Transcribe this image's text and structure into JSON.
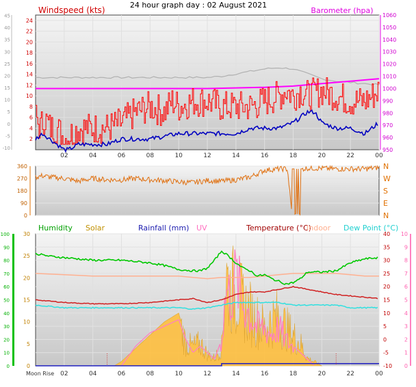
{
  "header": {
    "title": "24 hour graph day : 02 August 2021"
  },
  "colors": {
    "windspeed": "#ff0000",
    "wind_avg": "#0000c0",
    "barometer": "#ff00ff",
    "baro_grey": "#b0b0b0",
    "wind_dir": "#e07010",
    "humidity": "#00c800",
    "solar": "#ffc040",
    "rainfall": "#2020c0",
    "uv": "#ff80c0",
    "temperature": "#d02020",
    "indoor": "#ffb090",
    "dew_point": "#30e0e0",
    "day_axis_green": "#00c000",
    "solar_axis": "#c08000"
  },
  "chart_data": [
    {
      "type": "line",
      "panel": "wind",
      "left_label": "Windspeed (kts)",
      "right_label": "Barometer (hpa)",
      "x_ticks": [
        "02",
        "04",
        "06",
        "08",
        "10",
        "12",
        "14",
        "16",
        "18",
        "20",
        "22",
        "00"
      ],
      "left_ticks": [
        "-10",
        "-5",
        "0",
        "5",
        "10",
        "15",
        "20",
        "25",
        "30",
        "35",
        "40",
        "45"
      ],
      "red_ticks": [
        "2",
        "4",
        "6",
        "8",
        "10",
        "12",
        "14",
        "16",
        "18",
        "20",
        "22",
        "24"
      ],
      "right_ticks": [
        "950",
        "960",
        "970",
        "980",
        "990",
        "1000",
        "1010",
        "1020",
        "1030",
        "1040",
        "1050",
        "1060"
      ],
      "xlim": [
        0,
        24
      ],
      "red_lim": [
        0,
        25
      ],
      "baro_lim": [
        950,
        1060
      ],
      "series": [
        {
          "name": "Windspeed (kts)",
          "gust_x": [
            0,
            0.3,
            0.6,
            1,
            1.5,
            2,
            2.5,
            3,
            4,
            5,
            6,
            7,
            8,
            9,
            9.5,
            10,
            11,
            12,
            13,
            14,
            15,
            16,
            17,
            17.5,
            18,
            18.5,
            19,
            20,
            21,
            22,
            23,
            23.5,
            24
          ],
          "gust": [
            6,
            4,
            6,
            4,
            4,
            2,
            3,
            4,
            4,
            4,
            5,
            7,
            8,
            7,
            9,
            8,
            9,
            9,
            8,
            8,
            8,
            9,
            10,
            11,
            10,
            11,
            10,
            11,
            10,
            9,
            9,
            10,
            11
          ],
          "avg_x": [
            0,
            0.5,
            1,
            1.5,
            2,
            2.3,
            3,
            4,
            5,
            6,
            7,
            8,
            9,
            10,
            11,
            12,
            13,
            14,
            15,
            16,
            17,
            17.5,
            18,
            18.5,
            19,
            19.5,
            20,
            21,
            22,
            23,
            24
          ],
          "avg": [
            2,
            3,
            2,
            1,
            0,
            0,
            1,
            1,
            1,
            2,
            2,
            2,
            2.5,
            3,
            3,
            3,
            3,
            3,
            4,
            4,
            4,
            4.5,
            5,
            6,
            7,
            7,
            5,
            4,
            4,
            3,
            5
          ]
        },
        {
          "name": "Barometer (hpa)",
          "x": [
            0,
            4,
            8,
            12,
            16,
            18,
            20,
            22,
            24
          ],
          "values": [
            1000,
            1000,
            1000,
            1000,
            1001,
            1002,
            1004,
            1006,
            1008
          ]
        },
        {
          "name": "grey",
          "x": [
            0,
            2,
            4,
            6,
            8,
            10,
            12,
            13,
            14,
            15,
            16,
            17,
            18,
            19,
            20,
            21,
            22,
            23,
            24
          ],
          "values": [
            1009,
            1009,
            1009,
            1009,
            1009,
            1009,
            1009,
            1010,
            1012,
            1014,
            1016,
            1017,
            1016,
            1012,
            1008,
            1006,
            1005,
            1004,
            1003
          ]
        }
      ]
    },
    {
      "type": "scatter",
      "panel": "wind_direction",
      "left_ticks": [
        "0",
        "90",
        "180",
        "270",
        "360"
      ],
      "right_ticks": [
        "N",
        "E",
        "S",
        "W",
        "N"
      ],
      "xlim": [
        0,
        24
      ],
      "ylim": [
        0,
        360
      ],
      "series": [
        {
          "name": "wind direction",
          "x": [
            0,
            0.5,
            1,
            2,
            3,
            4,
            5,
            6,
            7,
            8,
            9,
            10,
            11,
            12,
            13,
            14,
            15,
            16,
            17,
            17.6,
            17.9,
            18.2,
            18.5,
            18.6,
            19,
            20,
            21,
            22,
            23,
            24
          ],
          "values": [
            280,
            290,
            280,
            270,
            250,
            270,
            260,
            260,
            270,
            260,
            255,
            245,
            240,
            255,
            250,
            260,
            280,
            330,
            340,
            340,
            20,
            10,
            10,
            340,
            345,
            345,
            340,
            340,
            340,
            350
          ]
        }
      ]
    },
    {
      "type": "line",
      "panel": "thermo",
      "legend": [
        "Humidity",
        "Solar",
        "Rainfall (mm)",
        "UV",
        "Temperature (°C)",
        "Indoor",
        "Dew Point (°C)"
      ],
      "humidity_ticks": [
        "0",
        "10",
        "20",
        "30",
        "40",
        "50",
        "60",
        "70",
        "80",
        "90",
        "100"
      ],
      "solar_ticks": [
        "0",
        "5",
        "10",
        "15",
        "20",
        "25",
        "30"
      ],
      "temp_ticks": [
        "-10",
        "-5",
        "0",
        "5",
        "10",
        "15",
        "20",
        "25",
        "30",
        "35",
        "40"
      ],
      "uv_ticks": [
        "0",
        "1",
        "2",
        "3",
        "4",
        "5",
        "6",
        "7",
        "8",
        "9",
        "10"
      ],
      "x_ticks": [
        "02",
        "04",
        "06",
        "08",
        "10",
        "12",
        "14",
        "16",
        "18",
        "20",
        "22",
        "00"
      ],
      "x_first_label": "Moon Rise",
      "xlim": [
        0,
        24
      ],
      "humidity_lim": [
        0,
        100
      ],
      "temp_lim": [
        -10,
        40
      ],
      "solar_lim": [
        0,
        30
      ],
      "uv_lim": [
        0,
        10
      ],
      "series": [
        {
          "name": "Humidity",
          "x": [
            0,
            1,
            2,
            3,
            4,
            5,
            6,
            7,
            8,
            9,
            10,
            11,
            11.5,
            12,
            12.5,
            13,
            13.5,
            14,
            14.5,
            15,
            15.5,
            16,
            16.5,
            17,
            17.5,
            18,
            18.5,
            19,
            20,
            21,
            22,
            23,
            24
          ],
          "values": [
            85,
            83,
            82,
            81,
            80,
            80,
            80,
            79,
            78,
            76,
            73,
            72,
            72,
            74,
            80,
            87,
            83,
            78,
            74,
            72,
            68,
            69,
            66,
            64,
            62,
            63,
            66,
            71,
            71,
            72,
            78,
            81,
            82
          ]
        },
        {
          "name": "Temperature (°C)",
          "x": [
            0,
            2,
            4,
            6,
            8,
            10,
            11,
            12,
            13,
            14,
            15,
            16,
            17,
            18,
            19,
            20,
            21,
            22,
            23,
            24
          ],
          "values": [
            15,
            14,
            13.5,
            13.5,
            14,
            15,
            15.5,
            14,
            15,
            17,
            18,
            18,
            19,
            20,
            19,
            18,
            17,
            16.5,
            16,
            15.5
          ]
        },
        {
          "name": "Dew Point (°C)",
          "x": [
            0,
            2,
            4,
            6,
            8,
            10,
            11,
            12,
            13,
            14,
            15,
            16,
            17,
            18,
            19,
            20,
            21,
            22,
            23,
            24
          ],
          "values": [
            13,
            12,
            12,
            12,
            12,
            12,
            11.5,
            12,
            13,
            14,
            14,
            14,
            14,
            13,
            13,
            13,
            13,
            12,
            12,
            12
          ]
        },
        {
          "name": "Indoor",
          "x": [
            0,
            2,
            4,
            6,
            8,
            10,
            11,
            12,
            13,
            14,
            15,
            16,
            17,
            18,
            19,
            20,
            21,
            22,
            23,
            24
          ],
          "values": [
            25,
            24.5,
            24,
            24,
            24,
            24,
            23.5,
            23,
            23.5,
            23.5,
            23.5,
            24,
            24.5,
            25,
            25,
            25,
            25,
            24.5,
            24,
            24
          ]
        },
        {
          "name": "Solar",
          "x": [
            5.5,
            6,
            7,
            8,
            9,
            10,
            10.5,
            11,
            11.5,
            12,
            12.5,
            13,
            13.3,
            13.6,
            14,
            14.5,
            15,
            15.5,
            16,
            16.5,
            17,
            17.5,
            18,
            18.5,
            19,
            19.5,
            20
          ],
          "values": [
            0,
            1,
            4,
            7,
            10,
            12,
            6,
            5,
            6,
            3,
            2,
            5,
            24,
            20,
            20,
            16,
            14,
            12,
            10,
            12,
            13,
            10,
            8,
            6,
            2,
            1,
            0
          ]
        },
        {
          "name": "UV",
          "x": [
            6,
            7,
            8,
            9,
            10,
            10.5,
            11,
            11.5,
            12,
            12.5,
            13,
            13.3,
            13.6,
            14,
            14.5,
            15,
            15.5,
            16,
            16.5,
            17,
            17.5,
            18,
            18.5,
            19,
            19.5
          ],
          "values": [
            0,
            1.5,
            2.5,
            3,
            3.5,
            2,
            1,
            1.5,
            1,
            0.5,
            2,
            6,
            5.5,
            7,
            5,
            4,
            3,
            3,
            2.5,
            3,
            2,
            1.5,
            1,
            0.5,
            0
          ]
        },
        {
          "name": "Rainfall (mm)",
          "x": [
            0,
            12.8,
            13,
            24
          ],
          "values": [
            0,
            0,
            0.5,
            0.5
          ]
        }
      ]
    }
  ]
}
